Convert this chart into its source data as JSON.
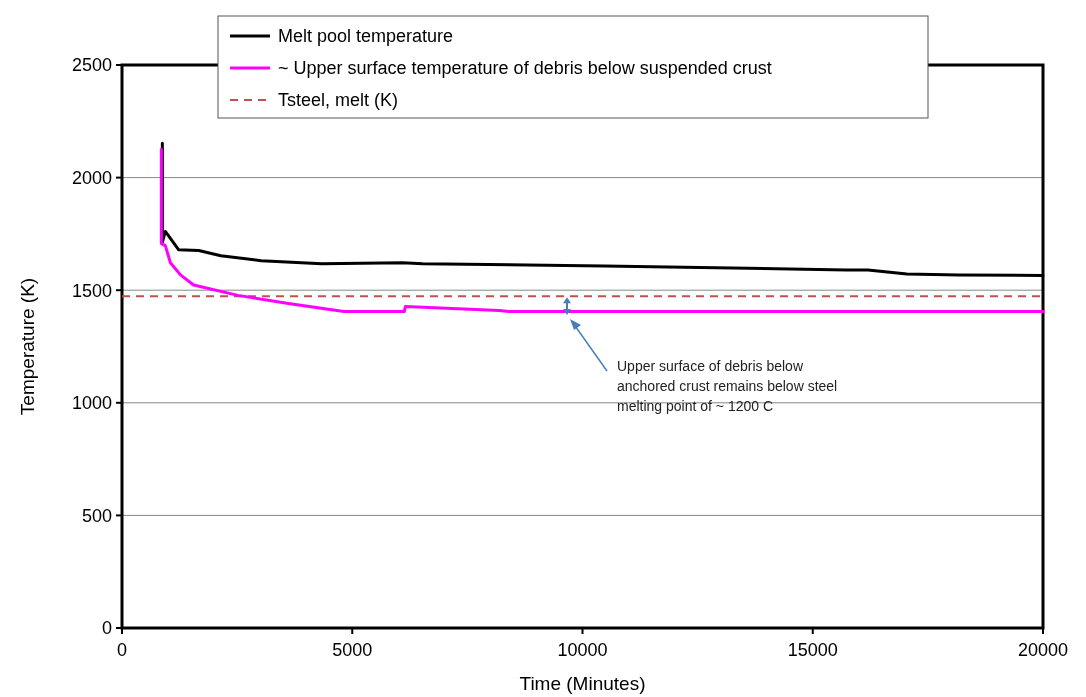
{
  "chart_data": {
    "type": "line",
    "xlabel": "Time (Minutes)",
    "ylabel": "Temperature (K)",
    "xlim": [
      0,
      20000
    ],
    "xticks": [
      0,
      5000,
      10000,
      15000,
      20000
    ],
    "ylim": [
      0,
      2500
    ],
    "yticks": [
      0,
      500,
      1000,
      1500,
      2000,
      2500
    ],
    "grid": "y",
    "legend": "top",
    "series": [
      {
        "name": "Melt pool temperature",
        "color": "#000000",
        "x": [
          876,
          876,
          941,
          1227,
          1665,
          2147,
          3023,
          4337,
          6090,
          6528,
          10471,
          15728,
          16200,
          17042,
          18182,
          20000
        ],
        "values": [
          2153,
          1712,
          1761,
          1680,
          1676,
          1653,
          1631,
          1617,
          1622,
          1617,
          1608,
          1590,
          1590,
          1572,
          1568,
          1565
        ]
      },
      {
        "name": "~ Upper surface temperature of debris below suspended crust",
        "color": "#ff00ff",
        "x": [
          854,
          854,
          941,
          1051,
          1270,
          1555,
          2519,
          3614,
          4819,
          6130,
          6155,
          8192,
          8400,
          20000
        ],
        "values": [
          2126,
          1707,
          1698,
          1622,
          1568,
          1523,
          1477,
          1441,
          1405,
          1405,
          1428,
          1410,
          1405,
          1405
        ]
      }
    ],
    "ref_lines": [
      {
        "axis": "y",
        "value": 1473,
        "label": "Tsteel, melt (K)",
        "color": "#c0504d",
        "line_style": "dashed"
      }
    ],
    "annotations": [
      "Upper surface of debris below anchored crust remains below steel melting point of ~ 1200 C"
    ]
  }
}
